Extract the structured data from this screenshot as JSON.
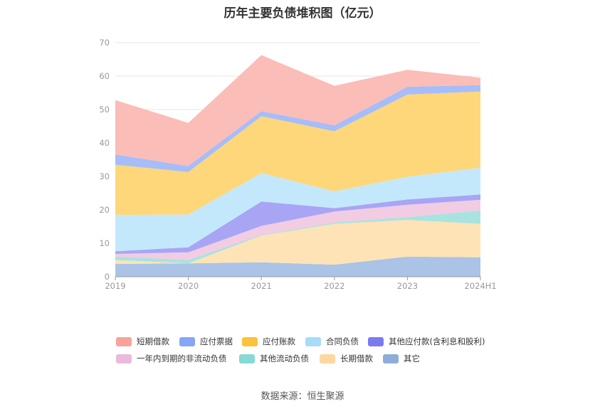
{
  "title": "历年主要负债堆积图（亿元）",
  "source": "数据来源：恒生聚源",
  "chart_data": {
    "type": "area",
    "stacked": true,
    "categories": [
      "2019",
      "2020",
      "2021",
      "2022",
      "2023",
      "2024H1"
    ],
    "ylim": [
      0,
      70
    ],
    "yticks": [
      0,
      10,
      20,
      30,
      40,
      50,
      60,
      70
    ],
    "grid": true,
    "legend_position": "bottom",
    "series": [
      {
        "name": "其它",
        "color": "#aac3e6",
        "values": [
          3.8,
          4.0,
          4.3,
          3.6,
          6.0,
          5.8
        ]
      },
      {
        "name": "长期借款",
        "color": "#fde3b6",
        "values": [
          1.2,
          0.0,
          8.0,
          12.2,
          11.0,
          10.0
        ]
      },
      {
        "name": "其他流动负债",
        "color": "#a8e3e0",
        "values": [
          1.0,
          1.0,
          0.2,
          0.4,
          0.8,
          4.0
        ]
      },
      {
        "name": "一年内到期的非流动负债",
        "color": "#f1cce3",
        "values": [
          0.8,
          2.3,
          2.7,
          3.3,
          3.7,
          3.2
        ]
      },
      {
        "name": "其他应付款(含利息和股利)",
        "color": "#a9a5f5",
        "values": [
          0.8,
          1.5,
          7.3,
          1.0,
          1.6,
          1.6
        ]
      },
      {
        "name": "合同负债",
        "color": "#c4e8fb",
        "values": [
          10.9,
          9.8,
          8.5,
          5.0,
          6.8,
          8.0
        ]
      },
      {
        "name": "应付账款",
        "color": "#fed77b",
        "values": [
          15.0,
          12.7,
          17.0,
          18.0,
          24.6,
          22.8
        ]
      },
      {
        "name": "应付票据",
        "color": "#a6bdf8",
        "values": [
          3.1,
          1.8,
          1.5,
          1.8,
          2.3,
          1.9
        ]
      },
      {
        "name": "短期借款",
        "color": "#fbbdb8",
        "values": [
          16.2,
          12.9,
          16.8,
          11.8,
          5.1,
          2.2
        ]
      }
    ],
    "legend": [
      {
        "name": "短期借款",
        "color": "#f7a39b"
      },
      {
        "name": "应付票据",
        "color": "#87a6f7"
      },
      {
        "name": "应付账款",
        "color": "#fbc23c"
      },
      {
        "name": "合同负债",
        "color": "#a7dcf8"
      },
      {
        "name": "其他应付款(含利息和股利)",
        "color": "#7b7bef"
      },
      {
        "name": "一年内到期的非流动负债",
        "color": "#ebbadb"
      },
      {
        "name": "其他流动负债",
        "color": "#85d9d6"
      },
      {
        "name": "长期借款",
        "color": "#fcd8a0"
      },
      {
        "name": "其它",
        "color": "#8fadd9"
      }
    ]
  }
}
